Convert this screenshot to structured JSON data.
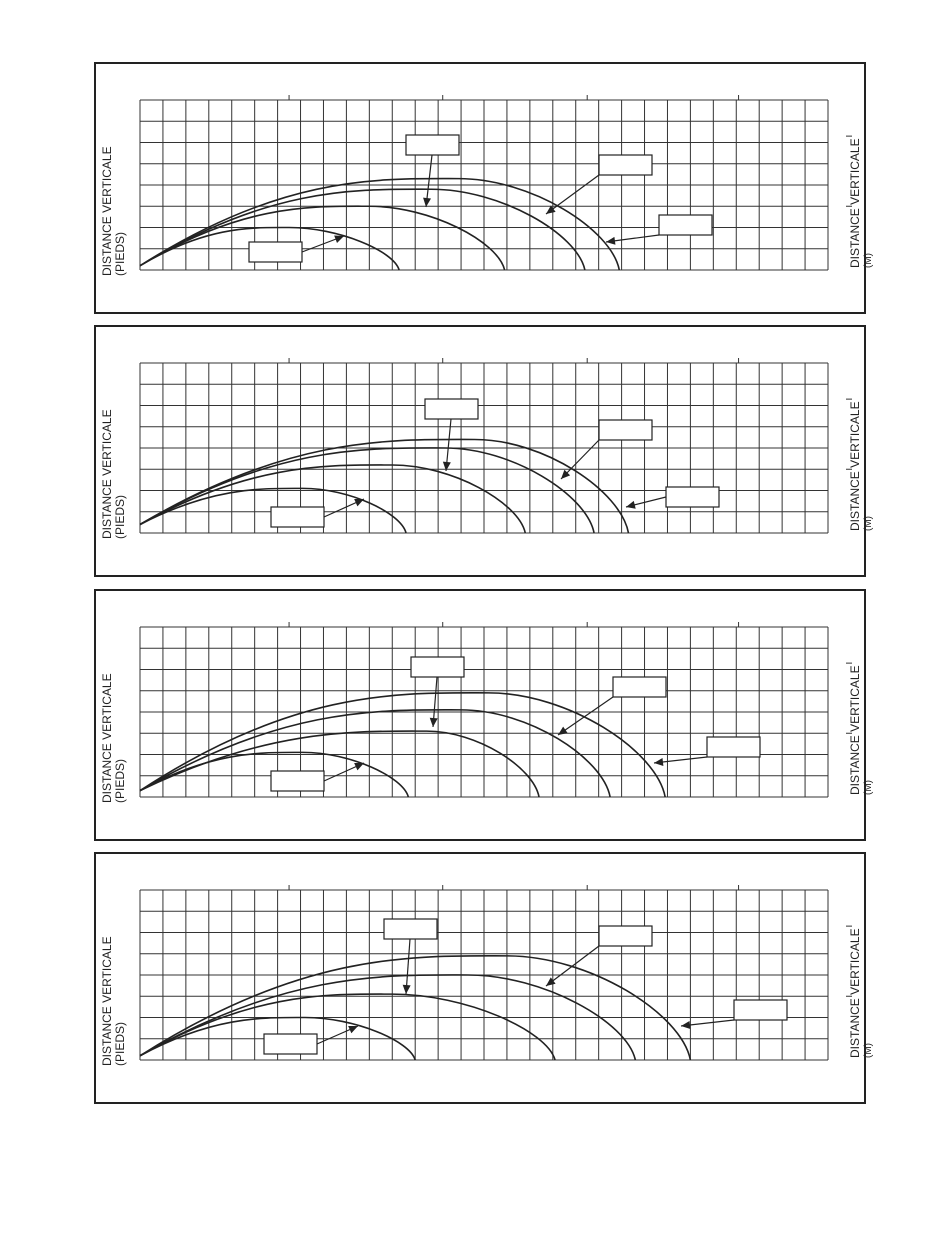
{
  "charts": [
    {
      "left_label": "DISTANCE VERTICALE",
      "left_unit": "(PIEDS)",
      "right_label": "DISTANCE VERTICALE",
      "right_unit": "(M)"
    },
    {
      "left_label": "DISTANCE VERTICALE",
      "left_unit": "(PIEDS)",
      "right_label": "DISTANCE VERTICALE",
      "right_unit": "(M)"
    },
    {
      "left_label": "DISTANCE VERTICALE",
      "left_unit": "(PIEDS)",
      "right_label": "DISTANCE VERTICALE",
      "right_unit": "(M)"
    },
    {
      "left_label": "DISTANCE VERTICALE",
      "left_unit": "(PIEDS)",
      "right_label": "DISTANCE VERTICALE",
      "right_unit": "(M)"
    }
  ],
  "chart_data": [
    {
      "type": "line",
      "ylabel": "DISTANCE VERTICALE (PIEDS)",
      "y2label": "DISTANCE VERTICALE (M)",
      "grid": true,
      "xlim": [
        0,
        30
      ],
      "ylim": [
        0,
        8
      ],
      "series": [
        {
          "x": [
            0,
            6.5,
            11.3
          ],
          "y": [
            0.2,
            2.0,
            0
          ],
          "labelbox": true
        },
        {
          "x": [
            0,
            10.0,
            15.9
          ],
          "y": [
            0.2,
            3.0,
            0
          ],
          "labelbox": true
        },
        {
          "x": [
            0,
            12.7,
            19.4
          ],
          "y": [
            0.2,
            3.8,
            0
          ],
          "labelbox": true
        },
        {
          "x": [
            0,
            13.9,
            20.9
          ],
          "y": [
            0.2,
            4.3,
            0
          ],
          "labelbox": true
        }
      ]
    },
    {
      "type": "line",
      "ylabel": "DISTANCE VERTICALE (PIEDS)",
      "y2label": "DISTANCE VERTICALE (M)",
      "grid": true,
      "xlim": [
        0,
        30
      ],
      "ylim": [
        0,
        8
      ],
      "series": [
        {
          "x": [
            0,
            7.1,
            11.6
          ],
          "y": [
            0.4,
            2.1,
            0
          ],
          "labelbox": true
        },
        {
          "x": [
            0,
            11.0,
            16.8
          ],
          "y": [
            0.4,
            3.2,
            0
          ],
          "labelbox": true
        },
        {
          "x": [
            0,
            13.3,
            19.8
          ],
          "y": [
            0.4,
            4.0,
            0
          ],
          "labelbox": true
        },
        {
          "x": [
            0,
            14.6,
            21.3
          ],
          "y": [
            0.4,
            4.4,
            0
          ],
          "labelbox": true
        }
      ]
    },
    {
      "type": "line",
      "ylabel": "DISTANCE VERTICALE (PIEDS)",
      "y2label": "DISTANCE VERTICALE (M)",
      "grid": true,
      "xlim": [
        0,
        30
      ],
      "ylim": [
        0,
        8
      ],
      "series": [
        {
          "x": [
            0,
            7.1,
            11.7
          ],
          "y": [
            0.3,
            2.1,
            0
          ],
          "labelbox": true
        },
        {
          "x": [
            0,
            12.5,
            17.4
          ],
          "y": [
            0.3,
            3.1,
            0
          ],
          "labelbox": true
        },
        {
          "x": [
            0,
            14.0,
            20.5
          ],
          "y": [
            0.3,
            4.1,
            0
          ],
          "labelbox": true
        },
        {
          "x": [
            0,
            15.2,
            22.9
          ],
          "y": [
            0.3,
            4.9,
            0
          ],
          "labelbox": true
        }
      ]
    },
    {
      "type": "line",
      "ylabel": "DISTANCE VERTICALE (PIEDS)",
      "y2label": "DISTANCE VERTICALE (M)",
      "grid": true,
      "xlim": [
        0,
        30
      ],
      "ylim": [
        0,
        8
      ],
      "series": [
        {
          "x": [
            0,
            7.2,
            12.0
          ],
          "y": [
            0.2,
            2.0,
            0
          ],
          "labelbox": true
        },
        {
          "x": [
            0,
            11.0,
            18.1
          ],
          "y": [
            0.2,
            3.1,
            0
          ],
          "labelbox": true
        },
        {
          "x": [
            0,
            14.3,
            21.6
          ],
          "y": [
            0.2,
            4.0,
            0
          ],
          "labelbox": true
        },
        {
          "x": [
            0,
            16.0,
            24.0
          ],
          "y": [
            0.2,
            4.9,
            0
          ],
          "labelbox": true
        }
      ]
    }
  ]
}
